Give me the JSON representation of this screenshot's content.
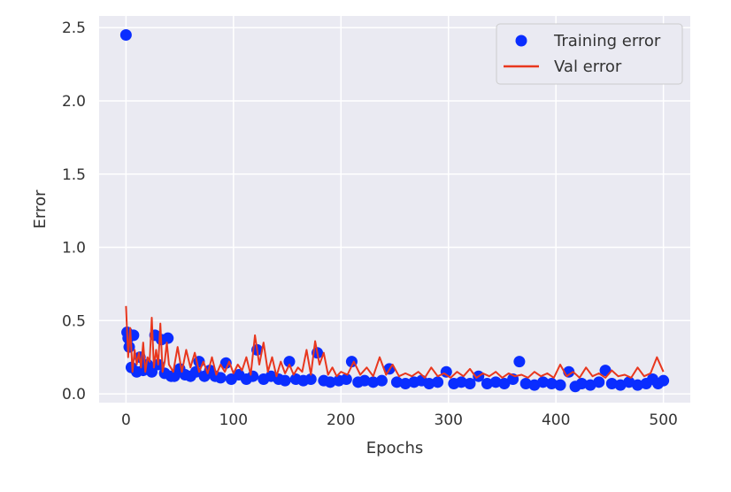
{
  "chart_data": {
    "type": "scatter",
    "title": "",
    "xlabel": "Epochs",
    "ylabel": "Error",
    "xlim": [
      -25,
      525
    ],
    "ylim": [
      -0.06,
      2.58
    ],
    "xticks": [
      0,
      100,
      200,
      300,
      400,
      500
    ],
    "yticks": [
      0.0,
      0.5,
      1.0,
      1.5,
      2.0,
      2.5
    ],
    "xtick_labels": [
      "0",
      "100",
      "200",
      "300",
      "400",
      "500"
    ],
    "ytick_labels": [
      "0.0",
      "0.5",
      "1.0",
      "1.5",
      "2.0",
      "2.5"
    ],
    "grid": true,
    "legend_position": "top-right",
    "series": [
      {
        "name": "Training error",
        "kind": "scatter",
        "color": "#0a2dff",
        "points": [
          [
            0,
            2.45
          ],
          [
            1,
            0.42
          ],
          [
            2,
            0.38
          ],
          [
            3,
            0.32
          ],
          [
            5,
            0.18
          ],
          [
            7,
            0.4
          ],
          [
            10,
            0.15
          ],
          [
            13,
            0.25
          ],
          [
            16,
            0.16
          ],
          [
            20,
            0.2
          ],
          [
            24,
            0.15
          ],
          [
            27,
            0.4
          ],
          [
            30,
            0.2
          ],
          [
            33,
            0.37
          ],
          [
            36,
            0.14
          ],
          [
            39,
            0.38
          ],
          [
            42,
            0.12
          ],
          [
            45,
            0.12
          ],
          [
            50,
            0.17
          ],
          [
            55,
            0.13
          ],
          [
            60,
            0.12
          ],
          [
            65,
            0.15
          ],
          [
            68,
            0.22
          ],
          [
            73,
            0.12
          ],
          [
            78,
            0.16
          ],
          [
            83,
            0.12
          ],
          [
            88,
            0.11
          ],
          [
            93,
            0.21
          ],
          [
            98,
            0.1
          ],
          [
            105,
            0.13
          ],
          [
            112,
            0.1
          ],
          [
            118,
            0.12
          ],
          [
            122,
            0.3
          ],
          [
            128,
            0.1
          ],
          [
            135,
            0.12
          ],
          [
            142,
            0.1
          ],
          [
            148,
            0.09
          ],
          [
            152,
            0.22
          ],
          [
            158,
            0.1
          ],
          [
            165,
            0.09
          ],
          [
            172,
            0.1
          ],
          [
            178,
            0.28
          ],
          [
            184,
            0.09
          ],
          [
            190,
            0.08
          ],
          [
            198,
            0.09
          ],
          [
            205,
            0.1
          ],
          [
            210,
            0.22
          ],
          [
            216,
            0.08
          ],
          [
            222,
            0.09
          ],
          [
            230,
            0.08
          ],
          [
            238,
            0.09
          ],
          [
            245,
            0.17
          ],
          [
            252,
            0.08
          ],
          [
            260,
            0.07
          ],
          [
            268,
            0.08
          ],
          [
            275,
            0.09
          ],
          [
            282,
            0.07
          ],
          [
            290,
            0.08
          ],
          [
            298,
            0.15
          ],
          [
            305,
            0.07
          ],
          [
            312,
            0.08
          ],
          [
            320,
            0.07
          ],
          [
            328,
            0.12
          ],
          [
            336,
            0.07
          ],
          [
            344,
            0.08
          ],
          [
            352,
            0.07
          ],
          [
            360,
            0.1
          ],
          [
            366,
            0.22
          ],
          [
            372,
            0.07
          ],
          [
            380,
            0.06
          ],
          [
            388,
            0.08
          ],
          [
            396,
            0.07
          ],
          [
            404,
            0.06
          ],
          [
            412,
            0.15
          ],
          [
            418,
            0.05
          ],
          [
            424,
            0.07
          ],
          [
            432,
            0.06
          ],
          [
            440,
            0.08
          ],
          [
            446,
            0.16
          ],
          [
            452,
            0.07
          ],
          [
            460,
            0.06
          ],
          [
            468,
            0.08
          ],
          [
            476,
            0.06
          ],
          [
            484,
            0.07
          ],
          [
            490,
            0.1
          ],
          [
            495,
            0.07
          ],
          [
            500,
            0.09
          ]
        ]
      },
      {
        "name": "Val error",
        "kind": "line",
        "color": "#e8371e",
        "x": [
          0,
          2,
          4,
          6,
          8,
          10,
          12,
          14,
          16,
          18,
          20,
          22,
          24,
          26,
          28,
          30,
          32,
          34,
          36,
          38,
          40,
          44,
          48,
          52,
          56,
          60,
          64,
          68,
          72,
          76,
          80,
          84,
          88,
          92,
          96,
          100,
          104,
          108,
          112,
          116,
          120,
          124,
          128,
          132,
          136,
          140,
          144,
          148,
          152,
          156,
          160,
          164,
          168,
          172,
          176,
          180,
          184,
          188,
          192,
          196,
          200,
          206,
          212,
          218,
          224,
          230,
          236,
          242,
          248,
          254,
          260,
          266,
          272,
          278,
          284,
          290,
          296,
          302,
          308,
          314,
          320,
          326,
          332,
          338,
          344,
          350,
          356,
          362,
          368,
          374,
          380,
          386,
          392,
          398,
          404,
          410,
          416,
          422,
          428,
          434,
          440,
          446,
          452,
          458,
          464,
          470,
          476,
          482,
          488,
          494,
          500
        ],
        "values": [
          0.6,
          0.25,
          0.45,
          0.15,
          0.3,
          0.2,
          0.28,
          0.18,
          0.35,
          0.15,
          0.25,
          0.22,
          0.52,
          0.18,
          0.3,
          0.2,
          0.48,
          0.15,
          0.22,
          0.35,
          0.2,
          0.15,
          0.32,
          0.15,
          0.3,
          0.18,
          0.28,
          0.15,
          0.22,
          0.14,
          0.25,
          0.13,
          0.2,
          0.15,
          0.22,
          0.14,
          0.2,
          0.16,
          0.25,
          0.13,
          0.4,
          0.2,
          0.35,
          0.15,
          0.25,
          0.12,
          0.22,
          0.14,
          0.2,
          0.13,
          0.18,
          0.15,
          0.3,
          0.13,
          0.36,
          0.2,
          0.28,
          0.13,
          0.18,
          0.12,
          0.15,
          0.13,
          0.22,
          0.13,
          0.18,
          0.12,
          0.25,
          0.13,
          0.2,
          0.12,
          0.14,
          0.12,
          0.15,
          0.11,
          0.18,
          0.12,
          0.14,
          0.11,
          0.15,
          0.12,
          0.17,
          0.11,
          0.14,
          0.12,
          0.15,
          0.11,
          0.14,
          0.12,
          0.13,
          0.11,
          0.15,
          0.12,
          0.14,
          0.11,
          0.2,
          0.12,
          0.15,
          0.11,
          0.18,
          0.12,
          0.14,
          0.11,
          0.16,
          0.12,
          0.13,
          0.11,
          0.18,
          0.12,
          0.14,
          0.25,
          0.15
        ]
      }
    ]
  }
}
